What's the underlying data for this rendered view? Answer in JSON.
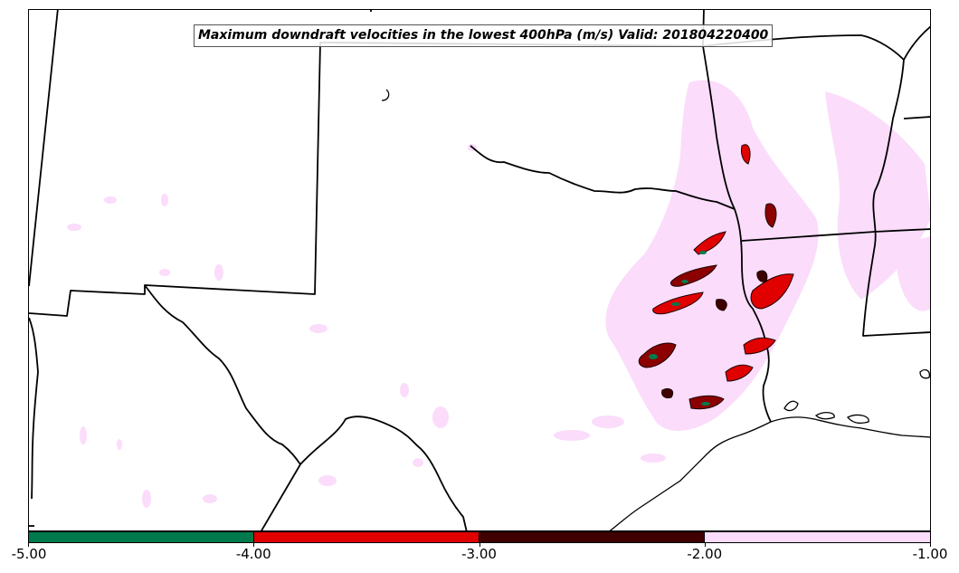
{
  "title": "Maximum downdraft velocities in the lowest 400hPa (m/s) Valid: 201804220400",
  "colorbar": {
    "ticks": [
      "-5.00",
      "-4.00",
      "-3.00",
      "-2.00",
      "-1.00"
    ],
    "bins": [
      {
        "min": -5.0,
        "max": -4.0,
        "color": "#007a4c"
      },
      {
        "min": -4.0,
        "max": -3.0,
        "color": "#e00000"
      },
      {
        "min": -3.0,
        "max": -2.0,
        "color": "#3f0000"
      },
      {
        "min": -2.0,
        "max": -1.0,
        "color": "#fbdcfb"
      }
    ]
  },
  "colors": {
    "weak": "#fbdcfb",
    "moderate": "#3f0000",
    "strong": "#e00000",
    "severe": "#007a4c",
    "borders": "#000000"
  }
}
